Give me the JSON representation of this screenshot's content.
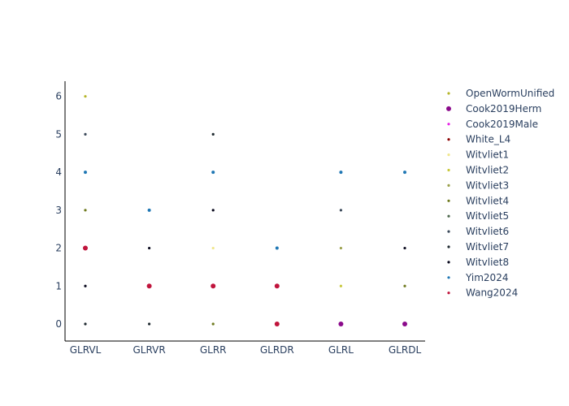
{
  "chart_data": {
    "type": "scatter",
    "title": "",
    "xlabel": "",
    "ylabel": "",
    "categories": [
      "GLRVL",
      "GLRVR",
      "GLRR",
      "GLRDR",
      "GLRL",
      "GLRDL"
    ],
    "y_ticks": [
      "0",
      "1",
      "2",
      "3",
      "4",
      "5",
      "6"
    ],
    "ylim": [
      -0.45,
      6.4
    ],
    "grid": false,
    "legend_position": "right",
    "series": [
      {
        "name": "OpenWormUnified",
        "color": "#b5b52a",
        "points": [
          {
            "x": "GLRVL",
            "y": 6
          }
        ]
      },
      {
        "name": "Cook2019Herm",
        "color": "#8b0a8b",
        "points": [
          {
            "x": "GLRL",
            "y": 0
          },
          {
            "x": "GLRDL",
            "y": 0
          }
        ]
      },
      {
        "name": "Cook2019Male",
        "color": "#e61ee6",
        "points": []
      },
      {
        "name": "White_L4",
        "color": "#8b0000",
        "points": []
      },
      {
        "name": "Witvliet1",
        "color": "#f0e68c",
        "points": [
          {
            "x": "GLRR",
            "y": 2
          }
        ]
      },
      {
        "name": "Witvliet2",
        "color": "#c8c83c",
        "points": [
          {
            "x": "GLRL",
            "y": 1
          }
        ]
      },
      {
        "name": "Witvliet3",
        "color": "#9aa04a",
        "points": [
          {
            "x": "GLRL",
            "y": 2
          }
        ]
      },
      {
        "name": "Witvliet4",
        "color": "#6f7a1f",
        "points": [
          {
            "x": "GLRVL",
            "y": 3
          },
          {
            "x": "GLRR",
            "y": 0
          },
          {
            "x": "GLRDL",
            "y": 1
          }
        ]
      },
      {
        "name": "Witvliet5",
        "color": "#4f6a4f",
        "points": []
      },
      {
        "name": "Witvliet6",
        "color": "#3b4a5a",
        "points": [
          {
            "x": "GLRVL",
            "y": 5
          },
          {
            "x": "GLRL",
            "y": 3
          }
        ]
      },
      {
        "name": "Witvliet7",
        "color": "#1f2a30",
        "points": [
          {
            "x": "GLRVL",
            "y": 0
          },
          {
            "x": "GLRVR",
            "y": 0
          },
          {
            "x": "GLRR",
            "y": 5
          }
        ]
      },
      {
        "name": "Witvliet8",
        "color": "#0a0a1e",
        "points": [
          {
            "x": "GLRVL",
            "y": 1
          },
          {
            "x": "GLRVR",
            "y": 2
          },
          {
            "x": "GLRR",
            "y": 3
          },
          {
            "x": "GLRDL",
            "y": 2
          }
        ]
      },
      {
        "name": "Yim2024",
        "color": "#1f77b4",
        "points": [
          {
            "x": "GLRVL",
            "y": 4
          },
          {
            "x": "GLRVR",
            "y": 3
          },
          {
            "x": "GLRR",
            "y": 4
          },
          {
            "x": "GLRDR",
            "y": 2
          },
          {
            "x": "GLRL",
            "y": 4
          },
          {
            "x": "GLRDL",
            "y": 4
          }
        ]
      },
      {
        "name": "Wang2024",
        "color": "#c0143c",
        "points": [
          {
            "x": "GLRVL",
            "y": 2
          },
          {
            "x": "GLRVR",
            "y": 1
          },
          {
            "x": "GLRR",
            "y": 1
          },
          {
            "x": "GLRDR",
            "y": 1
          },
          {
            "x": "GLRDR",
            "y": 0
          }
        ]
      }
    ]
  }
}
